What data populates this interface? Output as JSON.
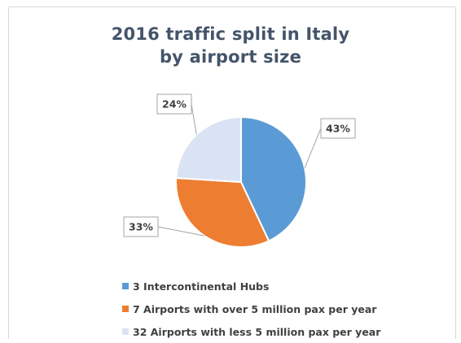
{
  "chart_data": {
    "type": "pie",
    "title_lines": [
      "2016 traffic split in Italy",
      "by airport size"
    ],
    "categories": [
      "3 Intercontinental Hubs",
      "7 Airports with over 5 million pax per year",
      "32 Airports with less 5 million pax per year"
    ],
    "values": [
      43,
      33,
      24
    ],
    "data_labels": [
      "43%",
      "33%",
      "24%"
    ],
    "colors": [
      "#5b9bd5",
      "#ed7d31",
      "#dae3f3"
    ],
    "legend_position": "bottom"
  }
}
